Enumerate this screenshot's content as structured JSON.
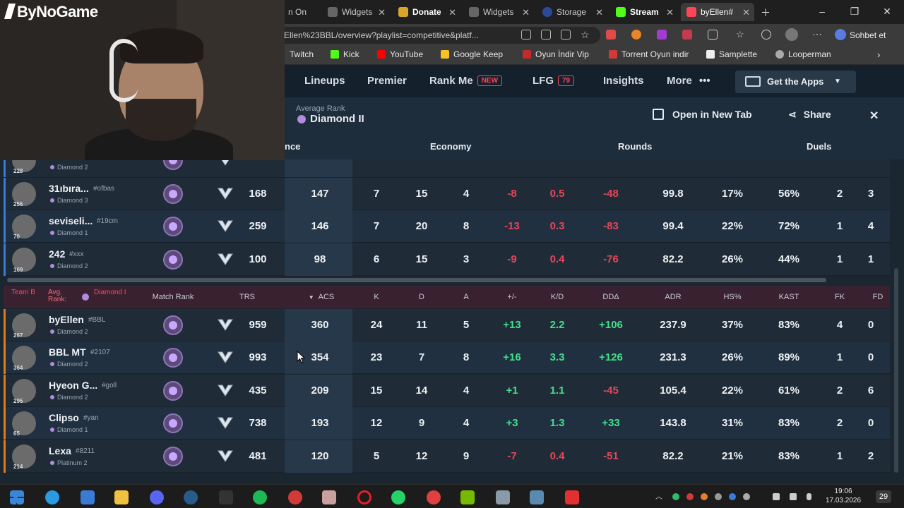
{
  "browser": {
    "tabs": [
      {
        "label": "n On",
        "active": false
      },
      {
        "label": "Widgets",
        "active": false
      },
      {
        "label": "Donate",
        "active": false
      },
      {
        "label": "Widgets",
        "active": false
      },
      {
        "label": "Storage",
        "active": false
      },
      {
        "label": "Stream",
        "active": false
      },
      {
        "label": "byEllen#",
        "active": true
      }
    ],
    "url": "Ellen%23BBL/overview?playlist=competitive&platf...",
    "copilot_label": "Sohbet et",
    "bookmarks": [
      "Twitch",
      "Kick",
      "YouTube",
      "Google Keep",
      "Oyun İndir Vip",
      "Torrent Oyun indir",
      "Samplette",
      "Looperman"
    ]
  },
  "overlay": {
    "logo": "ByNoGame"
  },
  "sitenav": {
    "items": [
      {
        "label": "Lineups"
      },
      {
        "label": "Premier"
      },
      {
        "label": "Rank Me",
        "badge": "NEW"
      },
      {
        "label": "LFG",
        "badge": "79"
      },
      {
        "label": "Insights"
      },
      {
        "label": "More"
      }
    ],
    "get_apps": "Get the Apps"
  },
  "match_header": {
    "avg_rank_label": "Average Rank",
    "avg_rank_value": "Diamond II",
    "open_new_tab": "Open in New Tab",
    "share": "Share",
    "groups": [
      "nce",
      "Economy",
      "Rounds",
      "Duels"
    ]
  },
  "team_a": {
    "rows": [
      {
        "name": "",
        "tag": "",
        "rank": "Diamond 2",
        "level": "228",
        "trs": "",
        "acs": "",
        "k": "",
        "d": "",
        "a": "",
        "pm": "",
        "kd": "",
        "dd": "",
        "adr": "",
        "hs": "",
        "kast": "",
        "fk": "",
        "fd": "",
        "stripe": "#3a7bd5",
        "partial": true
      },
      {
        "name": "31ıbıra...",
        "tag": "#ofbas",
        "rank": "Diamond 3",
        "level": "256",
        "trs": "168",
        "acs": "147",
        "k": "7",
        "d": "15",
        "a": "4",
        "pm": "-8",
        "kd": "0.5",
        "dd": "-48",
        "adr": "99.8",
        "hs": "17%",
        "kast": "56%",
        "fk": "2",
        "fd": "3",
        "stripe": "#3a7bd5"
      },
      {
        "name": "seviseli...",
        "tag": "#19cm",
        "rank": "Diamond 1",
        "level": "70",
        "trs": "259",
        "acs": "146",
        "k": "7",
        "d": "20",
        "a": "8",
        "pm": "-13",
        "kd": "0.3",
        "dd": "-83",
        "adr": "99.4",
        "hs": "22%",
        "kast": "72%",
        "fk": "1",
        "fd": "4",
        "stripe": "#3a7bd5"
      },
      {
        "name": "242",
        "tag": "#xxx",
        "rank": "Diamond 2",
        "level": "169",
        "trs": "100",
        "acs": "98",
        "k": "6",
        "d": "15",
        "a": "3",
        "pm": "-9",
        "kd": "0.4",
        "dd": "-76",
        "adr": "82.2",
        "hs": "26%",
        "kast": "44%",
        "fk": "1",
        "fd": "1",
        "stripe": "#3a7bd5"
      }
    ]
  },
  "team_b": {
    "label_team": "Team B",
    "label_avg": "Avg. Rank:",
    "label_rank": "Diamond I",
    "columns": [
      "Match Rank",
      "TRS",
      "ACS",
      "K",
      "D",
      "A",
      "+/-",
      "K/D",
      "DDΔ",
      "ADR",
      "HS%",
      "KAST",
      "FK",
      "FD"
    ],
    "rows": [
      {
        "name": "byEllen",
        "tag": "#BBL",
        "rank": "Diamond 2",
        "level": "267",
        "trs": "959",
        "acs": "360",
        "k": "24",
        "d": "11",
        "a": "5",
        "pm": "+13",
        "kd": "2.2",
        "dd": "+106",
        "adr": "237.9",
        "hs": "37%",
        "kast": "83%",
        "fk": "4",
        "fd": "0",
        "stripe": "#e07b1a"
      },
      {
        "name": "BBL MT",
        "tag": "#2107",
        "rank": "Diamond 2",
        "level": "364",
        "trs": "993",
        "acs": "354",
        "k": "23",
        "d": "7",
        "a": "8",
        "pm": "+16",
        "kd": "3.3",
        "dd": "+126",
        "adr": "231.3",
        "hs": "26%",
        "kast": "89%",
        "fk": "1",
        "fd": "0",
        "stripe": "#e07b1a"
      },
      {
        "name": "Hyeon G...",
        "tag": "#goll",
        "rank": "Diamond 2",
        "level": "295",
        "trs": "435",
        "acs": "209",
        "k": "15",
        "d": "14",
        "a": "4",
        "pm": "+1",
        "kd": "1.1",
        "dd": "-45",
        "adr": "105.4",
        "hs": "22%",
        "kast": "61%",
        "fk": "2",
        "fd": "6",
        "stripe": "#e07b1a"
      },
      {
        "name": "Clipso",
        "tag": "#yan",
        "rank": "Diamond 1",
        "level": "65",
        "trs": "738",
        "acs": "193",
        "k": "12",
        "d": "9",
        "a": "4",
        "pm": "+3",
        "kd": "1.3",
        "dd": "+33",
        "adr": "143.8",
        "hs": "31%",
        "kast": "83%",
        "fk": "2",
        "fd": "0",
        "stripe": "#e07b1a"
      },
      {
        "name": "Lexa",
        "tag": "#8211",
        "rank": "Platinum 2",
        "level": "214",
        "trs": "481",
        "acs": "120",
        "k": "5",
        "d": "12",
        "a": "9",
        "pm": "-7",
        "kd": "0.4",
        "dd": "-51",
        "adr": "82.2",
        "hs": "21%",
        "kast": "83%",
        "fk": "1",
        "fd": "2",
        "stripe": "#e07b1a"
      }
    ]
  },
  "taskbar": {
    "time": "19:06",
    "date": "17.03.2026",
    "notif": "29"
  },
  "colors": {
    "accent": "#ff4655",
    "positive": "#42e08a",
    "negative": "#e8455a"
  }
}
